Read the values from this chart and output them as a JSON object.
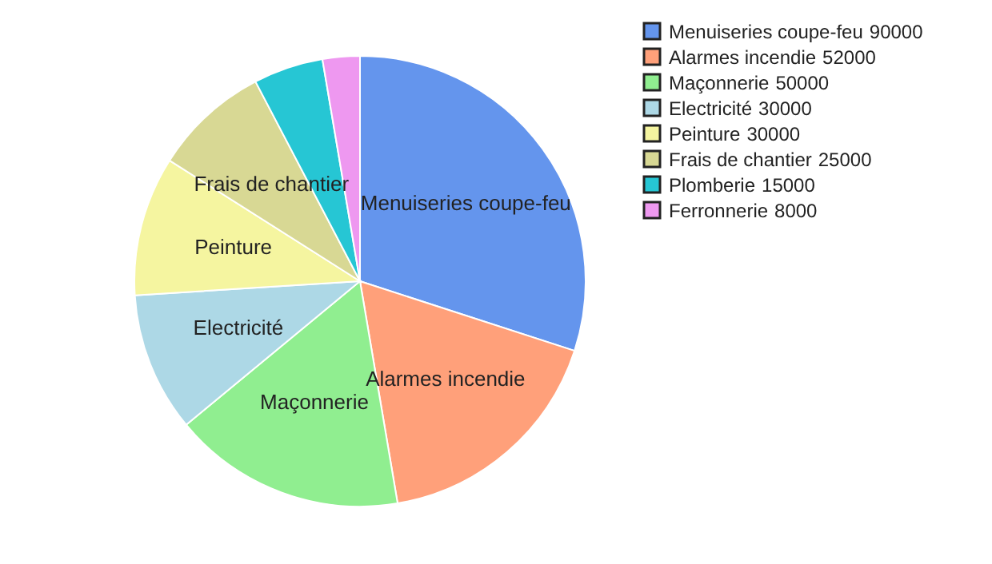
{
  "chart_data": {
    "type": "pie",
    "categories": [
      "Menuiseries coupe-feu",
      "Alarmes incendie",
      "Maçonnerie",
      "Electricité",
      "Peinture",
      "Frais de chantier",
      "Plomberie",
      "Ferronnerie"
    ],
    "values": [
      90000,
      52000,
      50000,
      30000,
      30000,
      25000,
      15000,
      8000
    ],
    "colors": [
      "#6495ed",
      "#ffa07a",
      "#90ee90",
      "#add8e6",
      "#f5f5a0",
      "#d8d894",
      "#26c6d4",
      "#ee98f0"
    ],
    "value_labels": [
      "90000",
      "52000",
      "50000",
      "30000",
      "30000",
      "25000",
      "15000",
      "8000"
    ],
    "legend": "top right"
  }
}
